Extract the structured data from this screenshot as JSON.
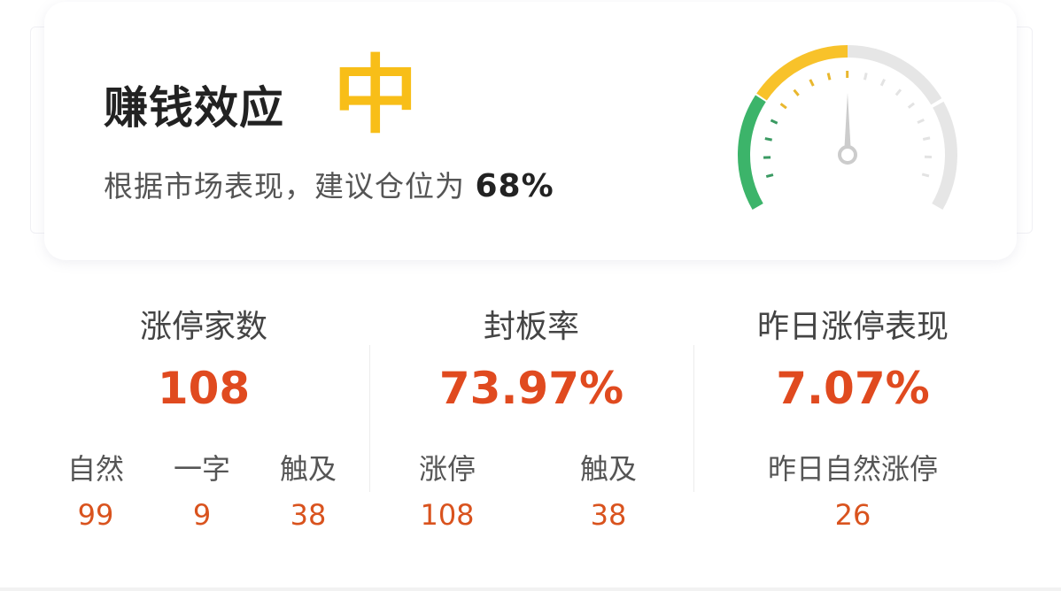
{
  "summary": {
    "title": "赚钱效应",
    "level": "中",
    "advice_prefix": "根据市场表现，建议仓位为",
    "position_pct": "68%",
    "gauge": {
      "needle_fraction": 0.5,
      "colors": {
        "low": "#3cb46a",
        "mid": "#f8c22a",
        "rest": "#e6e6e6",
        "needle": "#cccccc"
      }
    }
  },
  "stats": [
    {
      "title": "涨停家数",
      "value": "108",
      "items": [
        {
          "label": "自然",
          "value": "99"
        },
        {
          "label": "一字",
          "value": "9"
        },
        {
          "label": "触及",
          "value": "38"
        }
      ]
    },
    {
      "title": "封板率",
      "value": "73.97%",
      "items": [
        {
          "label": "涨停",
          "value": "108"
        },
        {
          "label": "触及",
          "value": "38"
        }
      ]
    },
    {
      "title": "昨日涨停表现",
      "value": "7.07%",
      "items": [
        {
          "label": "昨日自然涨停",
          "value": "26"
        }
      ]
    }
  ],
  "colors": {
    "accent_red": "#e04a1f",
    "level_yellow": "#f8be18"
  }
}
